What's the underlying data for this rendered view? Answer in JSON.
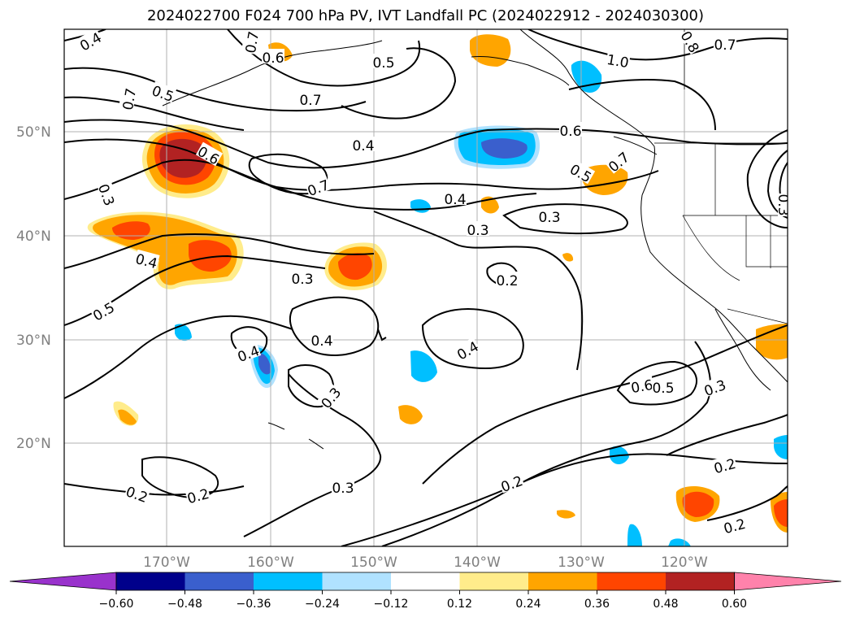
{
  "title": "2024022700 F024 700 hPa PV, IVT Landfall PC (2024022912 - 2024030300)",
  "map": {
    "lat_labels": [
      "50°N",
      "40°N",
      "30°N",
      "20°N"
    ],
    "lon_labels": [
      "170°W",
      "160°W",
      "150°W",
      "140°W",
      "130°W",
      "120°W"
    ],
    "contour_labels": [
      "0.4",
      "0.6",
      "0.5",
      "0.7",
      "0.7",
      "1.0",
      "0.8",
      "0.7",
      "0.5",
      "0.7",
      "0.4",
      "0.6",
      "0.6",
      "0.5",
      "0.7",
      "0.7",
      "0.3",
      "0.4",
      "0.3",
      "0.3",
      "0.4",
      "0.3",
      "0.2",
      "0.5",
      "0.4",
      "0.4",
      "0.4",
      "0.3",
      "0.6",
      "0.5",
      "0.3",
      "0.2",
      "0.2",
      "0.3",
      "0.2",
      "0.2",
      "0.2",
      "0.3"
    ]
  },
  "colorbar": {
    "ticks": [
      "−0.60",
      "−0.48",
      "−0.36",
      "−0.24",
      "−0.12",
      "0.12",
      "0.24",
      "0.36",
      "0.48",
      "0.60"
    ],
    "colors": [
      "#9932cc",
      "#00008b",
      "#3a5fcd",
      "#00bfff",
      "#b0e2ff",
      "#ffffff",
      "#ffec8b",
      "#ffa500",
      "#ff4500",
      "#b22222",
      "#ff82ab"
    ]
  }
}
